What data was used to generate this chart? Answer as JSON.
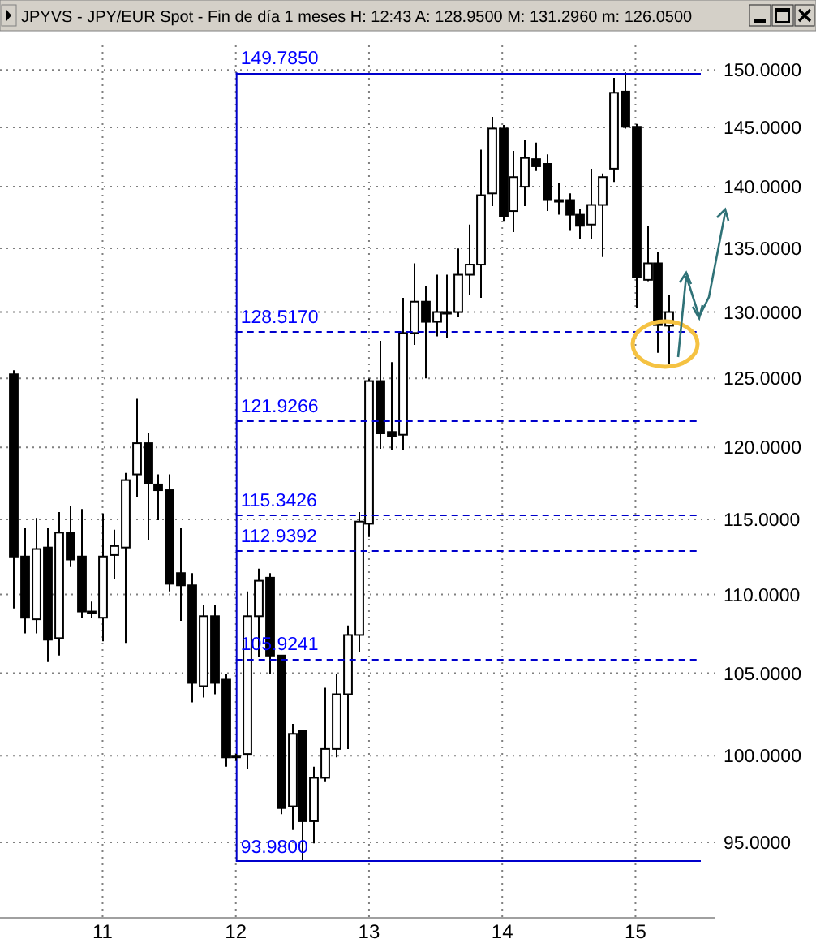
{
  "chart_data": {
    "type": "candlestick",
    "title": "JPYVS - JPY/EUR Spot - Fin de día 1 meses  H: 12:43  A: 128.9500  M: 131.2960  m: 126.0500",
    "x": [
      10.333,
      10.417,
      10.5,
      10.583,
      10.667,
      10.75,
      10.833,
      10.917,
      11,
      11.083,
      11.167,
      11.25,
      11.333,
      11.417,
      11.5,
      11.583,
      11.667,
      11.75,
      11.833,
      11.917,
      12,
      12.083,
      12.167,
      12.25,
      12.333,
      12.417,
      12.5,
      12.583,
      12.667,
      12.75,
      12.833,
      12.917,
      13,
      13.083,
      13.167,
      13.25,
      13.333,
      13.417,
      13.5,
      13.583,
      13.667,
      13.75,
      13.833,
      13.917,
      14,
      14.083,
      14.167,
      14.25,
      14.333,
      14.417,
      14.5,
      14.583,
      14.667,
      14.75,
      14.833,
      14.917,
      15,
      15.083,
      15.167,
      15.25
    ],
    "ohlc": [
      [
        125.3,
        125.6,
        109.1,
        112.5
      ],
      [
        112.5,
        114.4,
        107.5,
        108.5
      ],
      [
        108.4,
        115.1,
        107.5,
        113.0
      ],
      [
        113.1,
        114.4,
        105.7,
        107.1
      ],
      [
        107.2,
        115.5,
        106.1,
        114.1
      ],
      [
        114.1,
        115.9,
        111.8,
        112.3
      ],
      [
        112.5,
        115.7,
        108.5,
        108.9
      ],
      [
        108.9,
        109.55,
        108.5,
        108.9
      ],
      [
        108.5,
        115.4,
        107.0,
        112.5
      ],
      [
        112.6,
        114.3,
        111.0,
        113.2
      ],
      [
        113.1,
        118.2,
        106.9,
        117.7
      ],
      [
        118.1,
        123.5,
        116.55,
        120.3
      ],
      [
        120.3,
        121.0,
        113.6,
        117.5
      ],
      [
        117.4,
        118.1,
        114.95,
        117.0
      ],
      [
        117.0,
        118.1,
        110.2,
        110.7
      ],
      [
        111.4,
        114.4,
        108.3,
        110.6
      ],
      [
        110.6,
        111.4,
        103.2,
        104.4
      ],
      [
        104.2,
        109.35,
        103.5,
        108.6
      ],
      [
        108.6,
        109.35,
        103.7,
        104.4
      ],
      [
        104.6,
        104.95,
        99.35,
        99.9
      ],
      [
        100.0,
        100.1,
        99.7,
        100.0
      ],
      [
        100.1,
        110.2,
        99.25,
        108.6
      ],
      [
        108.6,
        111.7,
        106.0,
        110.9
      ],
      [
        111.1,
        111.4,
        104.95,
        106.1
      ],
      [
        106.1,
        106.1,
        96.6,
        96.95
      ],
      [
        97.05,
        101.9,
        95.7,
        101.3
      ],
      [
        101.5,
        101.5,
        93.98,
        96.2
      ],
      [
        96.2,
        99.35,
        94.95,
        98.7
      ],
      [
        98.7,
        104.1,
        98.5,
        100.4
      ],
      [
        100.4,
        104.95,
        99.9,
        103.7
      ],
      [
        103.7,
        108.0,
        100.4,
        107.4
      ],
      [
        107.4,
        115.5,
        106.3,
        114.85
      ],
      [
        114.7,
        125.0,
        113.8,
        124.8
      ],
      [
        124.8,
        127.8,
        119.9,
        121.0
      ],
      [
        121.1,
        126.2,
        119.8,
        120.8
      ],
      [
        120.9,
        131.1,
        119.8,
        128.4
      ],
      [
        128.4,
        133.8,
        127.5,
        130.8
      ],
      [
        130.8,
        132.0,
        125.0,
        129.25
      ],
      [
        129.25,
        132.9,
        128.15,
        130.0
      ],
      [
        130.0,
        132.9,
        128.0,
        130.0
      ],
      [
        130.0,
        134.97,
        129.6,
        132.9
      ],
      [
        132.9,
        136.9,
        131.3,
        133.7
      ],
      [
        133.7,
        143.1,
        131.1,
        139.3
      ],
      [
        139.45,
        145.9,
        138.4,
        144.9
      ],
      [
        144.9,
        145.2,
        137.2,
        137.6
      ],
      [
        138.0,
        143.0,
        136.3,
        140.8
      ],
      [
        140.0,
        143.9,
        138.4,
        142.4
      ],
      [
        142.3,
        143.7,
        141.3,
        141.7
      ],
      [
        141.9,
        142.7,
        138.0,
        138.9
      ],
      [
        138.9,
        140.3,
        137.7,
        138.9
      ],
      [
        138.9,
        139.45,
        136.4,
        137.7
      ],
      [
        137.7,
        138.2,
        135.75,
        136.8
      ],
      [
        136.9,
        141.5,
        135.75,
        138.5
      ],
      [
        138.5,
        141.1,
        134.3,
        140.8
      ],
      [
        141.5,
        149.3,
        140.4,
        148.0
      ],
      [
        148.1,
        149.785,
        144.9,
        145.05
      ],
      [
        145.05,
        145.3,
        130.3,
        132.7
      ],
      [
        132.5,
        136.8,
        132.4,
        133.8
      ],
      [
        133.8,
        134.7,
        126.9,
        129.0
      ],
      [
        128.95,
        131.296,
        126.05,
        130.0
      ]
    ],
    "color": "#000000",
    "log": true,
    "xlim": [
      10.23,
      15.6
    ],
    "xticks": [
      11,
      12,
      13,
      14,
      15
    ],
    "ylim": [
      90.9,
      152.2
    ],
    "yticks": [
      {
        "value": 95,
        "label": "95.0000"
      },
      {
        "value": 100,
        "label": "100.0000"
      },
      {
        "value": 105,
        "label": "105.0000"
      },
      {
        "value": 110,
        "label": "110.0000"
      },
      {
        "value": 115,
        "label": "115.0000"
      },
      {
        "value": 120,
        "label": "120.0000"
      },
      {
        "value": 125,
        "label": "125.0000"
      },
      {
        "value": 130,
        "label": "130.0000"
      },
      {
        "value": 135,
        "label": "135.0000"
      },
      {
        "value": 140,
        "label": "140.0000"
      },
      {
        "value": 145,
        "label": "145.0000"
      },
      {
        "value": 150,
        "label": "150.0000"
      }
    ],
    "grid": true,
    "ref_lines": [
      {
        "axis": "x",
        "value": 12,
        "color": "#0000cc",
        "line_style": "solid"
      },
      {
        "axis": "y",
        "value": 149.785,
        "label": "149.7850",
        "color": "#0000cc",
        "line_style": "solid"
      },
      {
        "axis": "y",
        "value": 128.517,
        "label": "128.5170",
        "color": "#0000cc",
        "line_style": "dashed"
      },
      {
        "axis": "y",
        "value": 121.9266,
        "label": "121.9266",
        "color": "#0000cc",
        "line_style": "dashed"
      },
      {
        "axis": "y",
        "value": 115.3426,
        "label": "115.3426",
        "color": "#0000cc",
        "line_style": "dashed"
      },
      {
        "axis": "y",
        "value": 112.9392,
        "label": "112.9392",
        "color": "#0000cc",
        "line_style": "dashed"
      },
      {
        "axis": "y",
        "value": 105.9241,
        "label": "105.9241",
        "color": "#0000cc",
        "line_style": "dashed"
      },
      {
        "axis": "y",
        "value": 93.98,
        "label": "93.9800",
        "color": "#0000cc",
        "line_style": "solid"
      }
    ]
  }
}
